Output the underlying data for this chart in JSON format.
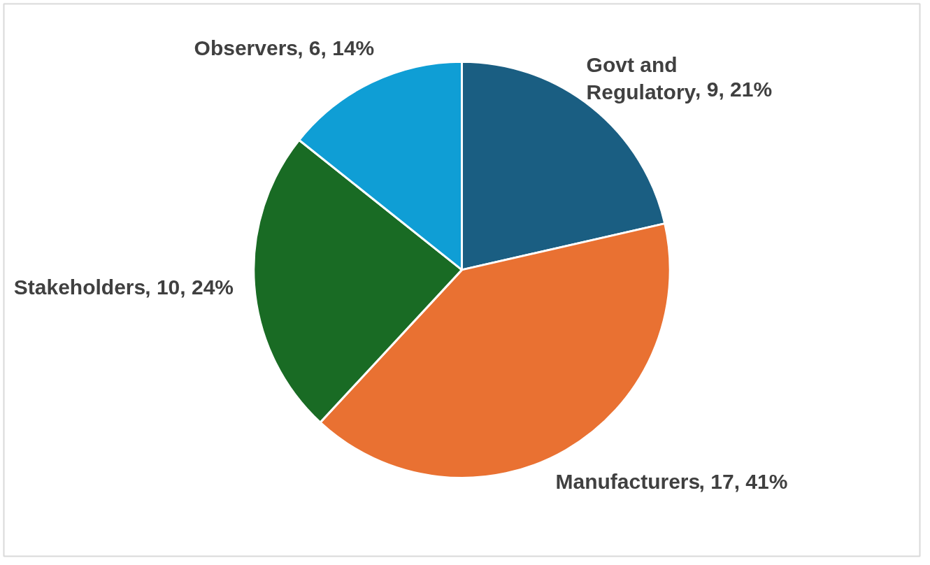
{
  "chart_data": {
    "type": "pie",
    "categories": [
      "Govt and Regulatory",
      "Manufacturers",
      "Stakeholders",
      "Observers"
    ],
    "values": [
      9,
      17,
      10,
      6
    ],
    "colors": [
      "#1a5e82",
      "#e97132",
      "#196b24",
      "#0f9ed5"
    ],
    "value_labels": [
      ", 9, 21%",
      ", 17, 41%",
      ", 10, 24%",
      ", 6, 14%"
    ]
  }
}
